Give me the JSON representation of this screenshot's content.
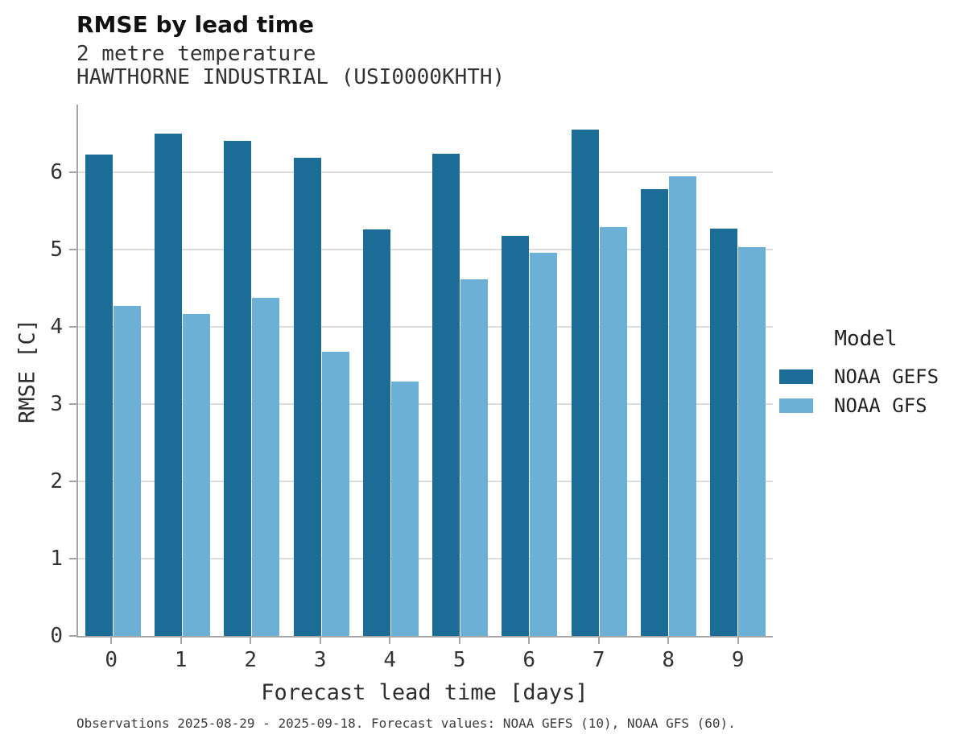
{
  "chart_data": {
    "type": "bar",
    "title": "RMSE by lead time",
    "subtitle1": "2 metre temperature",
    "subtitle2": "HAWTHORNE INDUSTRIAL (USI0000KHTH)",
    "xlabel": "Forecast lead time [days]",
    "ylabel": "RMSE [C]",
    "categories": [
      "0",
      "1",
      "2",
      "3",
      "4",
      "5",
      "6",
      "7",
      "8",
      "9"
    ],
    "series": [
      {
        "name": "NOAA GEFS",
        "color": "#1b6d97",
        "values": [
          6.23,
          6.5,
          6.4,
          6.18,
          5.26,
          6.24,
          5.17,
          6.55,
          5.78,
          5.27
        ]
      },
      {
        "name": "NOAA GFS",
        "color": "#6cb0d6",
        "values": [
          4.27,
          4.16,
          4.37,
          3.67,
          3.29,
          4.61,
          4.95,
          5.29,
          5.94,
          5.03
        ]
      }
    ],
    "ylim": [
      0,
      6.87
    ],
    "yticks": [
      0,
      1,
      2,
      3,
      4,
      5,
      6
    ],
    "legend_title": "Model",
    "legend_position": "right",
    "grid": "horizontal",
    "caption": "Observations 2025-08-29 - 2025-09-18. Forecast values: NOAA GEFS (10), NOAA GFS (60)."
  }
}
